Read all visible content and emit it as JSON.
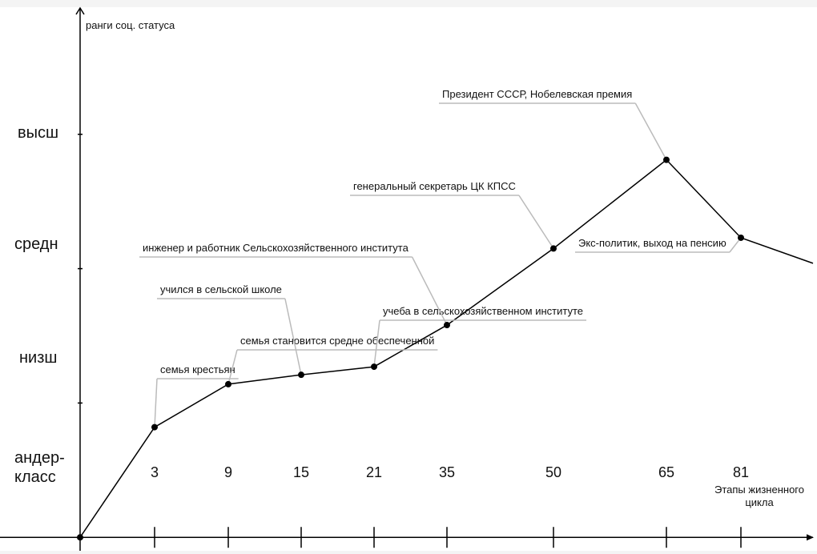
{
  "chart_data": {
    "type": "line",
    "y_title": "ранги соц. статуса",
    "x_title": "Этапы жизненного цикла",
    "y_rank_labels": [
      "андер-класс",
      "низш",
      "средн",
      "высш"
    ],
    "ylim": [
      -0.1,
      3.94
    ],
    "yticks": [
      1,
      2,
      3
    ],
    "categories": [
      null,
      "3",
      "9",
      "15",
      "21",
      "35",
      "50",
      "65",
      "81",
      null
    ],
    "values": [
      0,
      0.82,
      1.14,
      1.21,
      1.27,
      1.58,
      2.15,
      2.81,
      2.23,
      2.04
    ],
    "point_labels": [
      null,
      "семья крестьян",
      "семья становится средне обеспеченной",
      "учился в сельской школе",
      "учеба в сельскохозяйственном институте",
      "инженер и работник Сельскохозяйственного института",
      "генеральный секретарь ЦК КПСС",
      "Президент СССР, Нобелевская премия",
      "Экс-политик, выход на пенсию",
      null
    ],
    "color": "#000000"
  }
}
